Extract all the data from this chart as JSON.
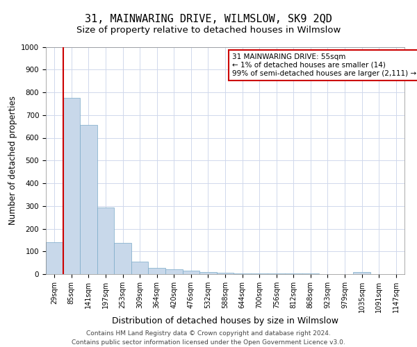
{
  "title": "31, MAINWARING DRIVE, WILMSLOW, SK9 2QD",
  "subtitle": "Size of property relative to detached houses in Wilmslow",
  "xlabel": "Distribution of detached houses by size in Wilmslow",
  "ylabel": "Number of detached properties",
  "bar_color": "#c8d8ea",
  "bar_edge_color": "#7aaac8",
  "categories": [
    "29sqm",
    "85sqm",
    "141sqm",
    "197sqm",
    "253sqm",
    "309sqm",
    "364sqm",
    "420sqm",
    "476sqm",
    "532sqm",
    "588sqm",
    "644sqm",
    "700sqm",
    "756sqm",
    "812sqm",
    "868sqm",
    "923sqm",
    "979sqm",
    "1035sqm",
    "1091sqm",
    "1147sqm"
  ],
  "values": [
    140,
    775,
    655,
    293,
    138,
    55,
    28,
    20,
    15,
    8,
    5,
    4,
    4,
    3,
    3,
    2,
    1,
    1,
    9,
    1,
    1
  ],
  "ylim": [
    0,
    1000
  ],
  "yticks": [
    0,
    100,
    200,
    300,
    400,
    500,
    600,
    700,
    800,
    900,
    1000
  ],
  "annotation_text": "31 MAINWARING DRIVE: 55sqm\n← 1% of detached houses are smaller (14)\n99% of semi-detached houses are larger (2,111) →",
  "annotation_box_color": "#ffffff",
  "annotation_box_edge": "#cc0000",
  "red_line_color": "#cc0000",
  "background_color": "#ffffff",
  "grid_color": "#d0d8ec",
  "footer_text": "Contains HM Land Registry data © Crown copyright and database right 2024.\nContains public sector information licensed under the Open Government Licence v3.0.",
  "title_fontsize": 11,
  "subtitle_fontsize": 9.5,
  "ylabel_fontsize": 8.5,
  "xlabel_fontsize": 9,
  "tick_fontsize": 7.5,
  "annotation_fontsize": 7.5,
  "footer_fontsize": 6.5
}
